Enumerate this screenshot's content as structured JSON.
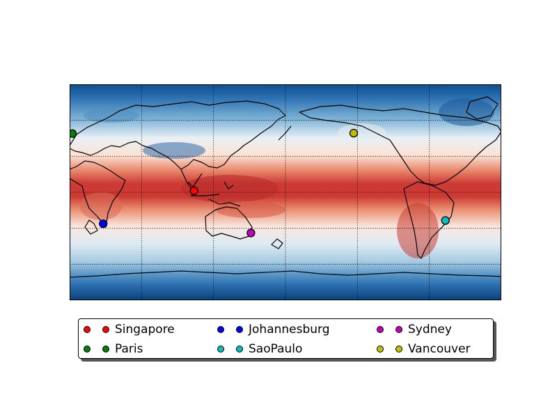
{
  "map": {
    "projection": "cylindrical",
    "lon_range": [
      0,
      360
    ],
    "lat_range": [
      -90,
      90
    ],
    "meridians": [
      60,
      120,
      180,
      240,
      300
    ],
    "parallels": [
      -60,
      -30,
      0,
      30,
      60
    ],
    "colormap": "RdBu_r"
  },
  "cities": [
    {
      "name": "Singapore",
      "lon": 103.8,
      "lat": 1.3,
      "color": "#ff0000"
    },
    {
      "name": "Paris",
      "lon": 2.35,
      "lat": 48.9,
      "color": "#008000"
    },
    {
      "name": "Johannesburg",
      "lon": 28.0,
      "lat": -26.2,
      "color": "#0000ff"
    },
    {
      "name": "SaoPaulo",
      "lon": 313.4,
      "lat": -23.5,
      "color": "#00bfbf"
    },
    {
      "name": "Sydney",
      "lon": 151.2,
      "lat": -33.9,
      "color": "#bf00bf"
    },
    {
      "name": "Vancouver",
      "lon": 236.9,
      "lat": 49.3,
      "color": "#bfbf00"
    }
  ],
  "legend": {
    "entries": [
      {
        "label": "Singapore",
        "color": "#ff0000"
      },
      {
        "label": "Johannesburg",
        "color": "#0000ff"
      },
      {
        "label": "Sydney",
        "color": "#bf00bf"
      },
      {
        "label": "Paris",
        "color": "#008000"
      },
      {
        "label": "SaoPaulo",
        "color": "#00bfbf"
      },
      {
        "label": "Vancouver",
        "color": "#bfbf00"
      }
    ]
  }
}
